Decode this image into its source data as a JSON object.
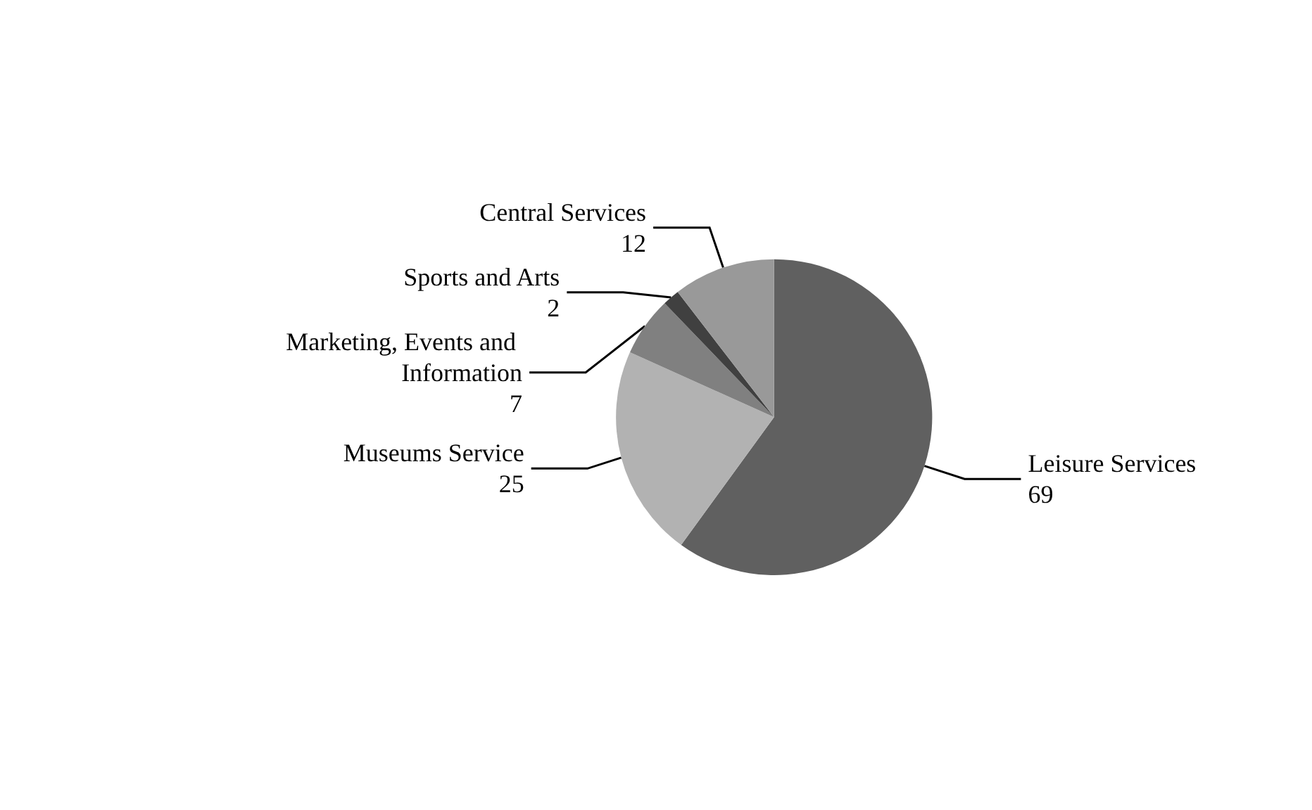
{
  "chart_data": {
    "type": "pie",
    "categories": [
      "Leisure Services",
      "Museums Service",
      "Marketing, Events and Information",
      "Sports and Arts",
      "Central Services"
    ],
    "values": [
      69,
      25,
      7,
      2,
      12
    ],
    "colors": [
      "#606060",
      "#b2b2b2",
      "#808080",
      "#404040",
      "#999999"
    ],
    "data_labels": true
  }
}
